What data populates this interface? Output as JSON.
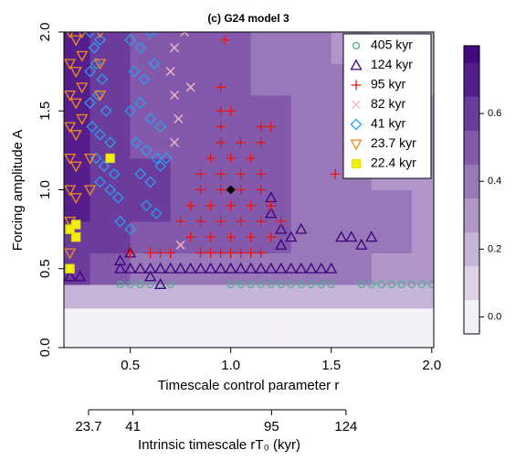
{
  "chart_data": {
    "type": "heatmap-scatter",
    "title": "(c) G24 model 3",
    "x_label": "Timescale control parameter r",
    "y_label": "Forcing amplitude A",
    "xlim": [
      0.17,
      2.01
    ],
    "ylim": [
      0,
      2
    ],
    "xticks": [
      0.5,
      {
        "value": 1.0,
        "label": "1.0"
      },
      1.5,
      {
        "value": 2.0,
        "label": "2.0"
      }
    ],
    "yticks": [
      {
        "value": 0.0,
        "label": "0.0"
      },
      0.5,
      {
        "value": 1.0,
        "label": "1.0"
      },
      1.5,
      {
        "value": 2.0,
        "label": "2.0"
      }
    ],
    "x2_label": "Intrinsic timescale rT₀ (kyr)",
    "x2lim": [
      14.1,
      158.2
    ],
    "x2ticks": [
      23.7,
      41,
      95,
      124
    ],
    "heatmap": {
      "x": [
        0.17,
        0.3,
        0.5,
        0.7,
        0.9,
        1.1,
        1.3,
        1.5,
        1.7,
        1.9,
        2.01
      ],
      "y": [
        0,
        0.25,
        0.4,
        0.6,
        0.8,
        1.0,
        1.2,
        1.4,
        1.6,
        1.8,
        2.0
      ],
      "z": [
        [
          0.0,
          0.0,
          0.0,
          0.0,
          0.0,
          0.0,
          0.0,
          0.0,
          0.0,
          0.0
        ],
        [
          0.15,
          0.15,
          0.15,
          0.15,
          0.15,
          0.15,
          0.15,
          0.15,
          0.15,
          0.15
        ],
        [
          0.55,
          0.45,
          0.4,
          0.4,
          0.4,
          0.4,
          0.4,
          0.35,
          0.3,
          0.3
        ],
        [
          0.6,
          0.55,
          0.5,
          0.5,
          0.5,
          0.45,
          0.4,
          0.35,
          0.35,
          0.3
        ],
        [
          0.65,
          0.6,
          0.55,
          0.5,
          0.5,
          0.45,
          0.4,
          0.35,
          0.35,
          0.3
        ],
        [
          0.65,
          0.6,
          0.55,
          0.5,
          0.5,
          0.45,
          0.4,
          0.35,
          0.3,
          0.3
        ],
        [
          0.65,
          0.6,
          0.5,
          0.5,
          0.5,
          0.45,
          0.4,
          0.35,
          0.3,
          0.25
        ],
        [
          0.7,
          0.6,
          0.5,
          0.5,
          0.45,
          0.45,
          0.4,
          0.35,
          0.3,
          0.25
        ],
        [
          0.7,
          0.6,
          0.5,
          0.45,
          0.45,
          0.4,
          0.4,
          0.35,
          0.25,
          0.2
        ],
        [
          0.7,
          0.6,
          0.5,
          0.45,
          0.45,
          0.4,
          0.35,
          0.3,
          0.2,
          0.2
        ]
      ]
    },
    "colorbar": {
      "lim": [
        -0.05,
        0.8
      ],
      "levels": [
        -0.05,
        0.05,
        0.15,
        0.25,
        0.35,
        0.45,
        0.55,
        0.65,
        0.75,
        0.8
      ],
      "ticks": [
        {
          "value": 0.0,
          "label": "0.0"
        },
        0.2,
        0.4,
        0.6
      ],
      "colors": [
        "#ffffff",
        "#3f007d"
      ]
    },
    "legend": "top-right",
    "series": [
      {
        "name": "405 kyr",
        "color": "#4daf8f",
        "marker": "circle",
        "x": [
          0.45,
          0.5,
          0.55,
          0.6,
          0.65,
          0.7,
          1.0,
          1.05,
          1.1,
          1.15,
          1.2,
          1.25,
          1.3,
          1.35,
          1.4,
          1.45,
          1.5,
          1.65,
          1.7,
          1.75,
          1.8,
          1.85,
          1.9,
          1.95,
          2.0
        ],
        "values": [
          0.4,
          0.4,
          0.4,
          0.4,
          0.4,
          0.4,
          0.4,
          0.4,
          0.4,
          0.4,
          0.4,
          0.4,
          0.4,
          0.4,
          0.4,
          0.4,
          0.4,
          0.4,
          0.4,
          0.4,
          0.4,
          0.4,
          0.4,
          0.4,
          0.4
        ]
      },
      {
        "name": "124 kyr",
        "color": "#3f007d",
        "marker": "triangle",
        "x": [
          0.2,
          0.25,
          0.45,
          0.5,
          0.55,
          0.6,
          0.65,
          0.7,
          0.75,
          0.8,
          0.85,
          0.9,
          0.95,
          1.0,
          1.05,
          1.1,
          1.15,
          1.2,
          1.25,
          1.3,
          1.35,
          1.4,
          1.45,
          1.5,
          1.2,
          1.2,
          1.25,
          1.25,
          1.3,
          1.35,
          1.55,
          1.6,
          1.65,
          1.7,
          0.45,
          0.5,
          0.6,
          0.65
        ],
        "values": [
          0.45,
          0.45,
          0.5,
          0.5,
          0.5,
          0.5,
          0.5,
          0.5,
          0.5,
          0.5,
          0.5,
          0.5,
          0.5,
          0.5,
          0.5,
          0.5,
          0.5,
          0.5,
          0.5,
          0.5,
          0.5,
          0.5,
          0.5,
          0.5,
          0.95,
          0.85,
          0.75,
          0.65,
          0.7,
          0.75,
          0.7,
          0.7,
          0.65,
          0.7,
          0.55,
          0.6,
          0.45,
          0.4
        ]
      },
      {
        "name": "95 kyr",
        "color": "#ee1111",
        "marker": "plus",
        "x": [
          0.85,
          0.9,
          0.95,
          1.0,
          1.05,
          1.1,
          1.15,
          0.5,
          0.6,
          0.65,
          0.7,
          0.8,
          0.9,
          1.0,
          1.1,
          1.2,
          0.75,
          0.85,
          0.95,
          1.05,
          1.15,
          1.25,
          0.8,
          0.9,
          1.0,
          1.1,
          1.2,
          0.85,
          0.95,
          1.05,
          1.15,
          0.85,
          0.95,
          1.05,
          1.15,
          1.52,
          0.9,
          1.0,
          1.1,
          0.95,
          1.05,
          1.15,
          0.95,
          1.15,
          1.2,
          0.95,
          1.0,
          0.95,
          0.97
        ],
        "values": [
          0.6,
          0.6,
          0.6,
          0.6,
          0.6,
          0.6,
          0.6,
          0.6,
          0.6,
          0.6,
          0.6,
          0.7,
          0.7,
          0.7,
          0.7,
          0.7,
          0.8,
          0.8,
          0.8,
          0.8,
          0.8,
          0.8,
          0.9,
          0.9,
          0.9,
          0.9,
          0.9,
          1.0,
          1.0,
          1.0,
          1.0,
          1.1,
          1.1,
          1.1,
          1.1,
          1.1,
          1.2,
          1.2,
          1.2,
          1.3,
          1.3,
          1.3,
          1.4,
          1.4,
          1.4,
          1.5,
          1.5,
          1.65,
          1.95
        ]
      },
      {
        "name": "82 kyr",
        "color": "#f4b8c8",
        "marker": "cross",
        "x": [
          0.72,
          0.74,
          0.72,
          0.7,
          0.72,
          0.77,
          0.8,
          0.75
        ],
        "values": [
          1.3,
          1.45,
          1.6,
          1.75,
          1.9,
          2.0,
          1.65,
          0.65
        ]
      },
      {
        "name": "41 kyr",
        "color": "#2b9cf0",
        "marker": "diamond",
        "x": [
          0.3,
          0.32,
          0.35,
          0.3,
          0.33,
          0.36,
          0.3,
          0.34,
          0.38,
          0.31,
          0.35,
          0.4,
          0.33,
          0.37,
          0.42,
          0.35,
          0.4,
          0.44,
          0.5,
          0.55,
          0.6,
          0.52,
          0.57,
          0.62,
          0.5,
          0.55,
          0.6,
          0.65,
          0.53,
          0.58,
          0.63,
          0.55,
          0.6,
          0.65,
          0.68,
          0.58,
          0.63,
          0.45,
          0.5
        ],
        "values": [
          2.0,
          1.9,
          1.95,
          1.75,
          1.8,
          1.7,
          1.55,
          1.6,
          1.5,
          1.4,
          1.35,
          1.3,
          1.2,
          1.15,
          1.1,
          1.05,
          1.0,
          0.95,
          1.95,
          1.9,
          2.0,
          1.75,
          1.7,
          1.8,
          1.5,
          1.55,
          1.45,
          1.4,
          1.3,
          1.25,
          1.2,
          1.1,
          1.05,
          1.15,
          1.2,
          0.9,
          0.85,
          0.8,
          0.75
        ]
      },
      {
        "name": "23.7 kyr",
        "color": "#f08c1c",
        "marker": "down-triangle",
        "x": [
          0.2,
          0.23,
          0.26,
          0.2,
          0.23,
          0.26,
          0.2,
          0.23,
          0.26,
          0.2,
          0.23,
          0.26,
          0.2,
          0.23,
          0.2,
          0.23,
          0.2,
          0.2,
          0.35,
          0.35,
          0.35,
          0.3,
          0.3
        ],
        "values": [
          2.0,
          1.95,
          2.0,
          1.8,
          1.75,
          1.85,
          1.6,
          1.55,
          1.65,
          1.4,
          1.35,
          1.45,
          1.2,
          1.15,
          1.0,
          0.95,
          0.8,
          0.6,
          2.0,
          1.8,
          1.6,
          1.0,
          1.2
        ]
      },
      {
        "name": "22.4 kyr",
        "color": "#f2ee10",
        "marker": "square",
        "x": [
          0.2,
          0.23,
          0.2,
          0.4,
          0.23
        ],
        "values": [
          0.75,
          0.78,
          0.5,
          1.2,
          0.7
        ]
      }
    ],
    "highlight": {
      "x": 1.0,
      "y": 1.0,
      "color": "#000000"
    }
  }
}
